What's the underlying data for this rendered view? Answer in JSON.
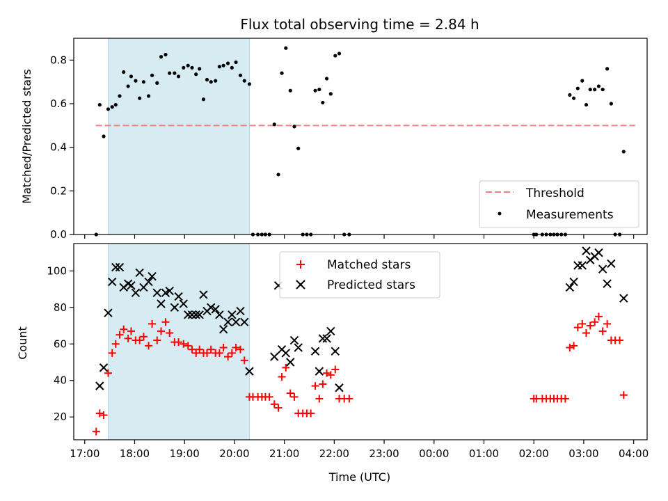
{
  "chart_data": {
    "type": "scatter",
    "title": "Flux total observing time = 2.84 h",
    "xlabel": "Time (UTC)",
    "x_unit": "hours since 00:00 UTC (values above 24 fall after midnight)",
    "xlim": [
      16.78,
      28.27
    ],
    "x_ticks": [
      17,
      18,
      19,
      20,
      21,
      22,
      23,
      24,
      25,
      26,
      27,
      28
    ],
    "x_tick_labels": [
      "17:00",
      "18:00",
      "19:00",
      "20:00",
      "21:00",
      "22:00",
      "23:00",
      "00:00",
      "01:00",
      "02:00",
      "03:00",
      "04:00"
    ],
    "shaded_span": [
      17.47,
      20.3
    ],
    "panels": [
      {
        "ylabel": "Matched/Predicted stars",
        "ylim": [
          0,
          0.9
        ],
        "y_ticks": [
          0.0,
          0.2,
          0.4,
          0.6,
          0.8
        ],
        "y_tick_labels": [
          "0.0",
          "0.2",
          "0.4",
          "0.6",
          "0.8"
        ],
        "legend_position": "lower-right",
        "threshold": {
          "name": "Threshold",
          "value": 0.5,
          "x_range": [
            17.22,
            28.03
          ],
          "color": "#f08080"
        },
        "series": [
          {
            "name": "Measurements",
            "color": "#000000",
            "marker": "dot",
            "points": [
              [
                17.23,
                0.0
              ],
              [
                17.3,
                0.595
              ],
              [
                17.38,
                0.45
              ],
              [
                17.47,
                0.575
              ],
              [
                17.55,
                0.585
              ],
              [
                17.62,
                0.595
              ],
              [
                17.7,
                0.635
              ],
              [
                17.78,
                0.745
              ],
              [
                17.87,
                0.68
              ],
              [
                17.93,
                0.725
              ],
              [
                18.02,
                0.705
              ],
              [
                18.1,
                0.625
              ],
              [
                18.18,
                0.7
              ],
              [
                18.28,
                0.635
              ],
              [
                18.35,
                0.73
              ],
              [
                18.45,
                0.695
              ],
              [
                18.53,
                0.815
              ],
              [
                18.62,
                0.825
              ],
              [
                18.7,
                0.74
              ],
              [
                18.8,
                0.74
              ],
              [
                18.88,
                0.725
              ],
              [
                18.98,
                0.765
              ],
              [
                19.07,
                0.775
              ],
              [
                19.15,
                0.765
              ],
              [
                19.23,
                0.735
              ],
              [
                19.3,
                0.76
              ],
              [
                19.38,
                0.62
              ],
              [
                19.45,
                0.71
              ],
              [
                19.53,
                0.7
              ],
              [
                19.62,
                0.705
              ],
              [
                19.7,
                0.77
              ],
              [
                19.78,
                0.775
              ],
              [
                19.87,
                0.785
              ],
              [
                19.95,
                0.765
              ],
              [
                20.03,
                0.79
              ],
              [
                20.12,
                0.73
              ],
              [
                20.2,
                0.705
              ],
              [
                20.3,
                0.69
              ],
              [
                20.37,
                0.0
              ],
              [
                20.47,
                0.0
              ],
              [
                20.55,
                0.0
              ],
              [
                20.62,
                0.0
              ],
              [
                20.7,
                0.0
              ],
              [
                20.8,
                0.505
              ],
              [
                20.88,
                0.275
              ],
              [
                20.95,
                0.74
              ],
              [
                21.03,
                0.855
              ],
              [
                21.12,
                0.66
              ],
              [
                21.2,
                0.495
              ],
              [
                21.28,
                0.395
              ],
              [
                21.37,
                0.0
              ],
              [
                21.45,
                0.0
              ],
              [
                21.53,
                0.0
              ],
              [
                21.62,
                0.66
              ],
              [
                21.7,
                0.665
              ],
              [
                21.77,
                0.605
              ],
              [
                21.85,
                0.715
              ],
              [
                21.93,
                0.645
              ],
              [
                22.02,
                0.82
              ],
              [
                22.1,
                0.83
              ],
              [
                22.2,
                0.0
              ],
              [
                22.3,
                0.0
              ],
              [
                26.0,
                0.0
              ],
              [
                26.05,
                0.0
              ],
              [
                26.17,
                0.0
              ],
              [
                26.25,
                0.0
              ],
              [
                26.33,
                0.0
              ],
              [
                26.4,
                0.0
              ],
              [
                26.47,
                0.0
              ],
              [
                26.55,
                0.0
              ],
              [
                26.63,
                0.0
              ],
              [
                26.72,
                0.64
              ],
              [
                26.8,
                0.625
              ],
              [
                26.88,
                0.67
              ],
              [
                26.97,
                0.705
              ],
              [
                27.05,
                0.595
              ],
              [
                27.13,
                0.665
              ],
              [
                27.22,
                0.665
              ],
              [
                27.3,
                0.68
              ],
              [
                27.38,
                0.665
              ],
              [
                27.47,
                0.76
              ],
              [
                27.55,
                0.6
              ],
              [
                27.63,
                0.0
              ],
              [
                27.72,
                0.0
              ],
              [
                27.8,
                0.38
              ]
            ]
          }
        ]
      },
      {
        "ylabel": "Count",
        "ylim": [
          7.5,
          115
        ],
        "y_ticks": [
          20,
          40,
          60,
          80,
          100
        ],
        "y_tick_labels": [
          "20",
          "40",
          "60",
          "80",
          "100"
        ],
        "legend_position": "upper-center",
        "series": [
          {
            "name": "Matched stars",
            "color": "#ff0000",
            "marker": "plus",
            "points": [
              [
                17.23,
                12
              ],
              [
                17.3,
                22
              ],
              [
                17.38,
                21
              ],
              [
                17.47,
                44
              ],
              [
                17.55,
                55
              ],
              [
                17.62,
                60
              ],
              [
                17.7,
                65
              ],
              [
                17.78,
                68
              ],
              [
                17.87,
                63
              ],
              [
                17.93,
                67
              ],
              [
                18.02,
                62
              ],
              [
                18.1,
                62
              ],
              [
                18.18,
                64
              ],
              [
                18.28,
                59
              ],
              [
                18.35,
                71
              ],
              [
                18.45,
                62
              ],
              [
                18.53,
                67
              ],
              [
                18.62,
                72
              ],
              [
                18.7,
                66
              ],
              [
                18.8,
                61
              ],
              [
                18.88,
                61
              ],
              [
                18.98,
                60
              ],
              [
                19.07,
                59
              ],
              [
                19.15,
                57
              ],
              [
                19.23,
                55
              ],
              [
                19.3,
                57
              ],
              [
                19.38,
                55
              ],
              [
                19.45,
                55
              ],
              [
                19.53,
                57
              ],
              [
                19.62,
                55
              ],
              [
                19.7,
                55
              ],
              [
                19.78,
                58
              ],
              [
                19.87,
                53
              ],
              [
                19.95,
                55
              ],
              [
                20.03,
                58
              ],
              [
                20.12,
                57
              ],
              [
                20.2,
                51
              ],
              [
                20.3,
                31
              ],
              [
                20.37,
                31
              ],
              [
                20.47,
                31
              ],
              [
                20.55,
                31
              ],
              [
                20.62,
                31
              ],
              [
                20.7,
                31
              ],
              [
                20.8,
                27
              ],
              [
                20.88,
                25
              ],
              [
                20.95,
                42
              ],
              [
                21.03,
                47
              ],
              [
                21.12,
                33
              ],
              [
                21.2,
                31
              ],
              [
                21.28,
                22
              ],
              [
                21.37,
                22
              ],
              [
                21.45,
                22
              ],
              [
                21.53,
                22
              ],
              [
                21.62,
                37
              ],
              [
                21.7,
                30
              ],
              [
                21.77,
                38
              ],
              [
                21.85,
                44
              ],
              [
                21.93,
                43
              ],
              [
                22.02,
                46
              ],
              [
                22.1,
                30
              ],
              [
                22.2,
                30
              ],
              [
                22.3,
                30
              ],
              [
                26.0,
                30
              ],
              [
                26.05,
                30
              ],
              [
                26.17,
                30
              ],
              [
                26.25,
                30
              ],
              [
                26.33,
                30
              ],
              [
                26.4,
                30
              ],
              [
                26.47,
                30
              ],
              [
                26.55,
                30
              ],
              [
                26.63,
                30
              ],
              [
                26.72,
                58
              ],
              [
                26.8,
                59
              ],
              [
                26.88,
                69
              ],
              [
                26.97,
                71
              ],
              [
                27.05,
                66
              ],
              [
                27.13,
                70
              ],
              [
                27.22,
                72
              ],
              [
                27.3,
                75
              ],
              [
                27.38,
                67
              ],
              [
                27.47,
                71
              ],
              [
                27.55,
                62
              ],
              [
                27.63,
                62
              ],
              [
                27.72,
                62
              ],
              [
                27.8,
                32
              ]
            ]
          },
          {
            "name": "Predicted stars",
            "color": "#000000",
            "marker": "x",
            "points": [
              [
                17.3,
                37
              ],
              [
                17.38,
                47
              ],
              [
                17.47,
                77
              ],
              [
                17.55,
                94
              ],
              [
                17.62,
                102
              ],
              [
                17.7,
                102
              ],
              [
                17.78,
                91
              ],
              [
                17.87,
                93
              ],
              [
                17.93,
                92
              ],
              [
                18.02,
                88
              ],
              [
                18.1,
                99
              ],
              [
                18.18,
                91
              ],
              [
                18.28,
                94
              ],
              [
                18.35,
                97
              ],
              [
                18.45,
                88
              ],
              [
                18.53,
                82
              ],
              [
                18.62,
                88
              ],
              [
                18.7,
                89
              ],
              [
                18.8,
                80
              ],
              [
                18.88,
                86
              ],
              [
                18.98,
                82
              ],
              [
                19.07,
                76
              ],
              [
                19.15,
                76
              ],
              [
                19.23,
                76
              ],
              [
                19.3,
                76
              ],
              [
                19.38,
                87
              ],
              [
                19.45,
                78
              ],
              [
                19.53,
                80
              ],
              [
                19.62,
                79
              ],
              [
                19.7,
                76
              ],
              [
                19.78,
                68
              ],
              [
                19.87,
                72
              ],
              [
                19.95,
                76
              ],
              [
                20.03,
                72
              ],
              [
                20.12,
                78
              ],
              [
                20.2,
                72
              ],
              [
                20.3,
                45
              ],
              [
                20.8,
                53
              ],
              [
                20.88,
                92
              ],
              [
                20.95,
                57
              ],
              [
                21.03,
                55
              ],
              [
                21.12,
                50
              ],
              [
                21.2,
                62
              ],
              [
                21.28,
                58
              ],
              [
                21.7,
                45
              ],
              [
                21.62,
                56
              ],
              [
                21.77,
                63
              ],
              [
                21.85,
                63
              ],
              [
                21.93,
                67
              ],
              [
                22.02,
                56
              ],
              [
                22.1,
                36
              ],
              [
                26.72,
                91
              ],
              [
                26.8,
                94
              ],
              [
                26.88,
                103
              ],
              [
                26.97,
                103
              ],
              [
                27.05,
                111
              ],
              [
                27.13,
                106
              ],
              [
                27.22,
                108
              ],
              [
                27.3,
                110
              ],
              [
                27.38,
                101
              ],
              [
                27.47,
                93
              ],
              [
                27.55,
                104
              ],
              [
                27.8,
                85
              ]
            ]
          }
        ]
      }
    ]
  }
}
